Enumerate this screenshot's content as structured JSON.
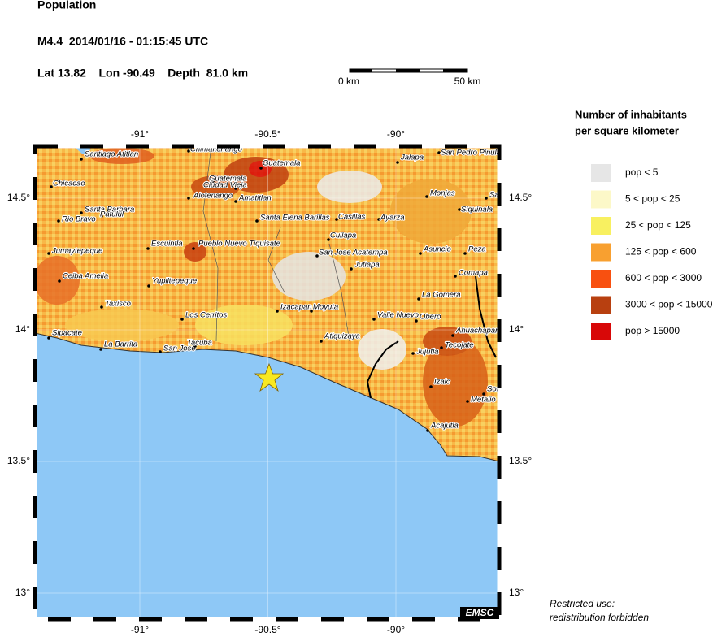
{
  "header": {
    "title": "Population",
    "event": "M4.4  2014/01/16 - 01:15:45 UTC",
    "location": "Lat 13.82    Lon -90.49    Depth  81.0 km"
  },
  "scale_bar": {
    "start": "0 km",
    "end": "50 km"
  },
  "axes": {
    "lon_ticks": [
      {
        "value": -91,
        "label": "-91°"
      },
      {
        "value": -90.5,
        "label": "-90.5°"
      },
      {
        "value": -90,
        "label": "-90°"
      }
    ],
    "lat_ticks": [
      {
        "value": 14.5,
        "label": "14.5°"
      },
      {
        "value": 14,
        "label": "14°"
      },
      {
        "value": 13.5,
        "label": "13.5°"
      },
      {
        "value": 13,
        "label": "13°"
      }
    ]
  },
  "legend": {
    "title_line1": "Number of inhabitants",
    "title_line2": "per square kilometer",
    "items": [
      {
        "label": "pop < 5",
        "color": "#e6e6e6"
      },
      {
        "label": "5 < pop < 25",
        "color": "#fcf8c8"
      },
      {
        "label": "25 < pop < 125",
        "color": "#f8f060"
      },
      {
        "label": "125 < pop < 600",
        "color": "#f8a030"
      },
      {
        "label": "600 < pop < 3000",
        "color": "#f85010"
      },
      {
        "label": "3000 < pop < 15000",
        "color": "#b84010"
      },
      {
        "label": "pop > 15000",
        "color": "#d80808"
      }
    ]
  },
  "cities": [
    "Santiago Atitlan",
    "Chimaltenango",
    "Guatemala",
    "Chicacao",
    "Guatemala",
    "Ciudad Vieja",
    "Alotenango",
    "Amatitlan",
    "Santa Barbara",
    "Patulul",
    "Rio Bravo",
    "Santa Elena Barillas",
    "Casillas",
    "Ayarza",
    "Jalapa",
    "San Pedro Pinula",
    "Monjas",
    "Santa Ca",
    "Siquinala",
    "Escuintla",
    "Pueblo Nuevo Tiquisate",
    "Jumaytepeque",
    "Cuilapa",
    "San Jose Acatempa",
    "Jutiapa",
    "Asuncio",
    "Peza",
    "Ceiba Amelia",
    "Yupiltepeque",
    "Comapa",
    "La Gomera",
    "Taxisco",
    "Izacapan",
    "Moyuta",
    "Valle Nuevo",
    "Obero",
    "Los Cerritos",
    "Atiquizaya",
    "Ahuachapan",
    "Tecojate",
    "Sipacate",
    "La Barrita",
    "San Jose",
    "Tacuba",
    "Jujutla",
    "Izalc",
    "Sonson",
    "Metalio",
    "Acajutla"
  ],
  "footer": {
    "note_line1": "Restricted use:",
    "note_line2": "redistribution forbidden",
    "brand": "EMSC"
  }
}
